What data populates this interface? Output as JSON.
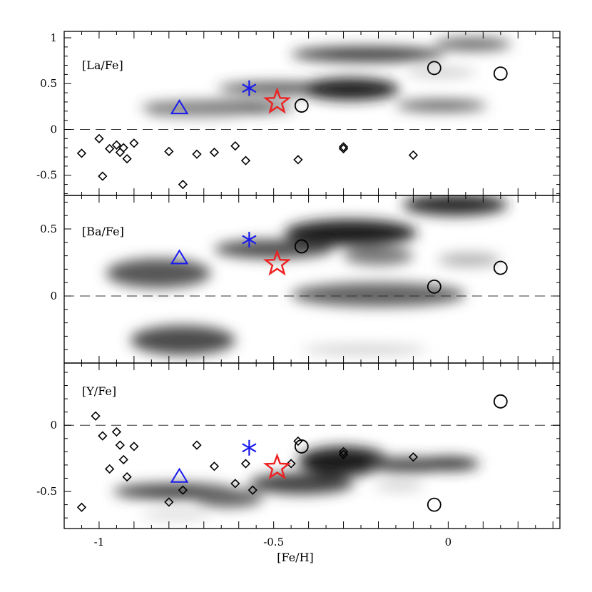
{
  "chart_data": [
    {
      "type": "scatter",
      "panel_label": "[La/Fe]",
      "xlabel": "[Fe/H]",
      "ylabel": "",
      "xlim": [
        -1.1,
        0.32
      ],
      "ylim": [
        -0.72,
        1.07
      ],
      "yticks": [
        -0.5,
        0,
        0.5,
        1
      ],
      "ytick_labels": [
        "-0.5",
        "0",
        "0.5",
        "1"
      ],
      "reference_line": 0,
      "density_blobs": [
        {
          "x": -0.66,
          "y": 0.24,
          "w": 0.44,
          "h": 0.13,
          "level": 0.85
        },
        {
          "x": -0.48,
          "y": 0.45,
          "w": 0.36,
          "h": 0.12,
          "level": 0.85
        },
        {
          "x": -0.28,
          "y": 0.44,
          "w": 0.28,
          "h": 0.24,
          "level": 1.0
        },
        {
          "x": -0.23,
          "y": 0.82,
          "w": 0.44,
          "h": 0.16,
          "level": 0.9
        },
        {
          "x": 0.07,
          "y": 0.93,
          "w": 0.22,
          "h": 0.14,
          "level": 0.7
        },
        {
          "x": -0.02,
          "y": 0.26,
          "w": 0.26,
          "h": 0.12,
          "level": 0.75
        },
        {
          "x": -0.72,
          "y": 0.18,
          "w": 0.28,
          "h": 0.1,
          "level": 0.45
        },
        {
          "x": -0.02,
          "y": 0.62,
          "w": 0.2,
          "h": 0.08,
          "level": 0.3
        }
      ],
      "series": [
        {
          "name": "diamonds",
          "marker": "diamond",
          "color": "#000000",
          "points": [
            [
              -1.05,
              -0.26
            ],
            [
              -1.0,
              -0.1
            ],
            [
              -0.99,
              -0.51
            ],
            [
              -0.97,
              -0.21
            ],
            [
              -0.95,
              -0.17
            ],
            [
              -0.94,
              -0.25
            ],
            [
              -0.93,
              -0.2
            ],
            [
              -0.92,
              -0.32
            ],
            [
              -0.9,
              -0.15
            ],
            [
              -0.8,
              -0.24
            ],
            [
              -0.76,
              -0.6
            ],
            [
              -0.72,
              -0.27
            ],
            [
              -0.67,
              -0.25
            ],
            [
              -0.61,
              -0.18
            ],
            [
              -0.58,
              -0.34
            ],
            [
              -0.43,
              -0.33
            ],
            [
              -0.3,
              -0.21
            ],
            [
              -0.3,
              -0.19
            ],
            [
              -0.1,
              -0.28
            ]
          ]
        },
        {
          "name": "circles",
          "marker": "circle",
          "color": "#000000",
          "points": [
            [
              -0.42,
              0.26
            ],
            [
              -0.04,
              0.67
            ],
            [
              0.15,
              0.61
            ]
          ]
        },
        {
          "name": "triangle",
          "marker": "triangle",
          "color": "#1a1aee",
          "points": [
            [
              -0.77,
              0.23
            ]
          ]
        },
        {
          "name": "asterisk",
          "marker": "asterisk",
          "color": "#1a1aee",
          "points": [
            [
              -0.57,
              0.45
            ]
          ]
        },
        {
          "name": "star",
          "marker": "star",
          "color": "#ee2020",
          "points": [
            [
              -0.49,
              0.3
            ]
          ]
        }
      ]
    },
    {
      "type": "scatter",
      "panel_label": "[Ba/Fe]",
      "xlabel": "[Fe/H]",
      "ylabel": "",
      "xlim": [
        -1.1,
        0.32
      ],
      "ylim": [
        -0.5,
        0.75
      ],
      "yticks": [
        0,
        0.5
      ],
      "ytick_labels": [
        "0",
        "0.5"
      ],
      "reference_line": 0,
      "density_blobs": [
        {
          "x": -0.83,
          "y": 0.17,
          "w": 0.3,
          "h": 0.22,
          "level": 0.75
        },
        {
          "x": -0.76,
          "y": -0.33,
          "w": 0.3,
          "h": 0.22,
          "level": 0.8
        },
        {
          "x": -0.5,
          "y": 0.35,
          "w": 0.34,
          "h": 0.14,
          "level": 0.8
        },
        {
          "x": -0.28,
          "y": 0.47,
          "w": 0.38,
          "h": 0.2,
          "level": 1.0
        },
        {
          "x": -0.2,
          "y": 0.3,
          "w": 0.2,
          "h": 0.14,
          "level": 0.6
        },
        {
          "x": 0.02,
          "y": 0.68,
          "w": 0.3,
          "h": 0.16,
          "level": 0.95
        },
        {
          "x": -0.2,
          "y": 0.01,
          "w": 0.5,
          "h": 0.18,
          "level": 0.7
        },
        {
          "x": 0.06,
          "y": 0.27,
          "w": 0.18,
          "h": 0.1,
          "level": 0.35
        },
        {
          "x": -0.24,
          "y": -0.4,
          "w": 0.36,
          "h": 0.08,
          "level": 0.2
        }
      ],
      "series": [
        {
          "name": "circles",
          "marker": "circle",
          "color": "#000000",
          "points": [
            [
              -0.42,
              0.37
            ],
            [
              -0.04,
              0.07
            ],
            [
              0.15,
              0.21
            ]
          ]
        },
        {
          "name": "triangle",
          "marker": "triangle",
          "color": "#1a1aee",
          "points": [
            [
              -0.77,
              0.28
            ]
          ]
        },
        {
          "name": "asterisk",
          "marker": "asterisk",
          "color": "#1a1aee",
          "points": [
            [
              -0.57,
              0.42
            ]
          ]
        },
        {
          "name": "star",
          "marker": "star",
          "color": "#ee2020",
          "points": [
            [
              -0.49,
              0.24
            ]
          ]
        }
      ]
    },
    {
      "type": "scatter",
      "panel_label": "[Y/Fe]",
      "xlabel": "[Fe/H]",
      "ylabel": "",
      "xlim": [
        -1.1,
        0.32
      ],
      "ylim": [
        -0.78,
        0.47
      ],
      "yticks": [
        -0.5,
        0
      ],
      "ytick_labels": [
        "-0.5",
        "0"
      ],
      "xticks": [
        -1,
        -0.5,
        0
      ],
      "xtick_labels": [
        "-1",
        "-0.5",
        "0"
      ],
      "reference_line": 0,
      "density_blobs": [
        {
          "x": -0.78,
          "y": -0.5,
          "w": 0.36,
          "h": 0.12,
          "level": 0.85
        },
        {
          "x": -0.63,
          "y": -0.55,
          "w": 0.2,
          "h": 0.14,
          "level": 0.7
        },
        {
          "x": -0.42,
          "y": -0.44,
          "w": 0.3,
          "h": 0.16,
          "level": 0.85
        },
        {
          "x": -0.3,
          "y": -0.27,
          "w": 0.26,
          "h": 0.22,
          "level": 1.0
        },
        {
          "x": -0.12,
          "y": -0.3,
          "w": 0.22,
          "h": 0.12,
          "level": 0.8
        },
        {
          "x": 0.0,
          "y": -0.29,
          "w": 0.18,
          "h": 0.1,
          "level": 0.95
        },
        {
          "x": -0.78,
          "y": -0.68,
          "w": 0.2,
          "h": 0.06,
          "level": 0.2
        },
        {
          "x": -0.14,
          "y": -0.46,
          "w": 0.14,
          "h": 0.06,
          "level": 0.25
        }
      ],
      "series": [
        {
          "name": "diamonds",
          "marker": "diamond",
          "color": "#000000",
          "points": [
            [
              -1.05,
              -0.62
            ],
            [
              -1.01,
              0.07
            ],
            [
              -0.99,
              -0.08
            ],
            [
              -0.97,
              -0.33
            ],
            [
              -0.95,
              -0.05
            ],
            [
              -0.94,
              -0.15
            ],
            [
              -0.93,
              -0.26
            ],
            [
              -0.92,
              -0.39
            ],
            [
              -0.9,
              -0.16
            ],
            [
              -0.8,
              -0.58
            ],
            [
              -0.76,
              -0.49
            ],
            [
              -0.72,
              -0.15
            ],
            [
              -0.67,
              -0.31
            ],
            [
              -0.61,
              -0.44
            ],
            [
              -0.58,
              -0.29
            ],
            [
              -0.56,
              -0.49
            ],
            [
              -0.45,
              -0.29
            ],
            [
              -0.43,
              -0.12
            ],
            [
              -0.3,
              -0.2
            ],
            [
              -0.3,
              -0.22
            ],
            [
              -0.1,
              -0.24
            ]
          ]
        },
        {
          "name": "circles",
          "marker": "circle",
          "color": "#000000",
          "points": [
            [
              -0.42,
              -0.16
            ],
            [
              -0.04,
              -0.6
            ],
            [
              0.15,
              0.18
            ]
          ]
        },
        {
          "name": "triangle",
          "marker": "triangle",
          "color": "#1a1aee",
          "points": [
            [
              -0.77,
              -0.39
            ]
          ]
        },
        {
          "name": "asterisk",
          "marker": "asterisk",
          "color": "#1a1aee",
          "points": [
            [
              -0.57,
              -0.17
            ]
          ]
        },
        {
          "name": "star",
          "marker": "star",
          "color": "#ee2020",
          "points": [
            [
              -0.49,
              -0.32
            ]
          ]
        }
      ]
    }
  ]
}
